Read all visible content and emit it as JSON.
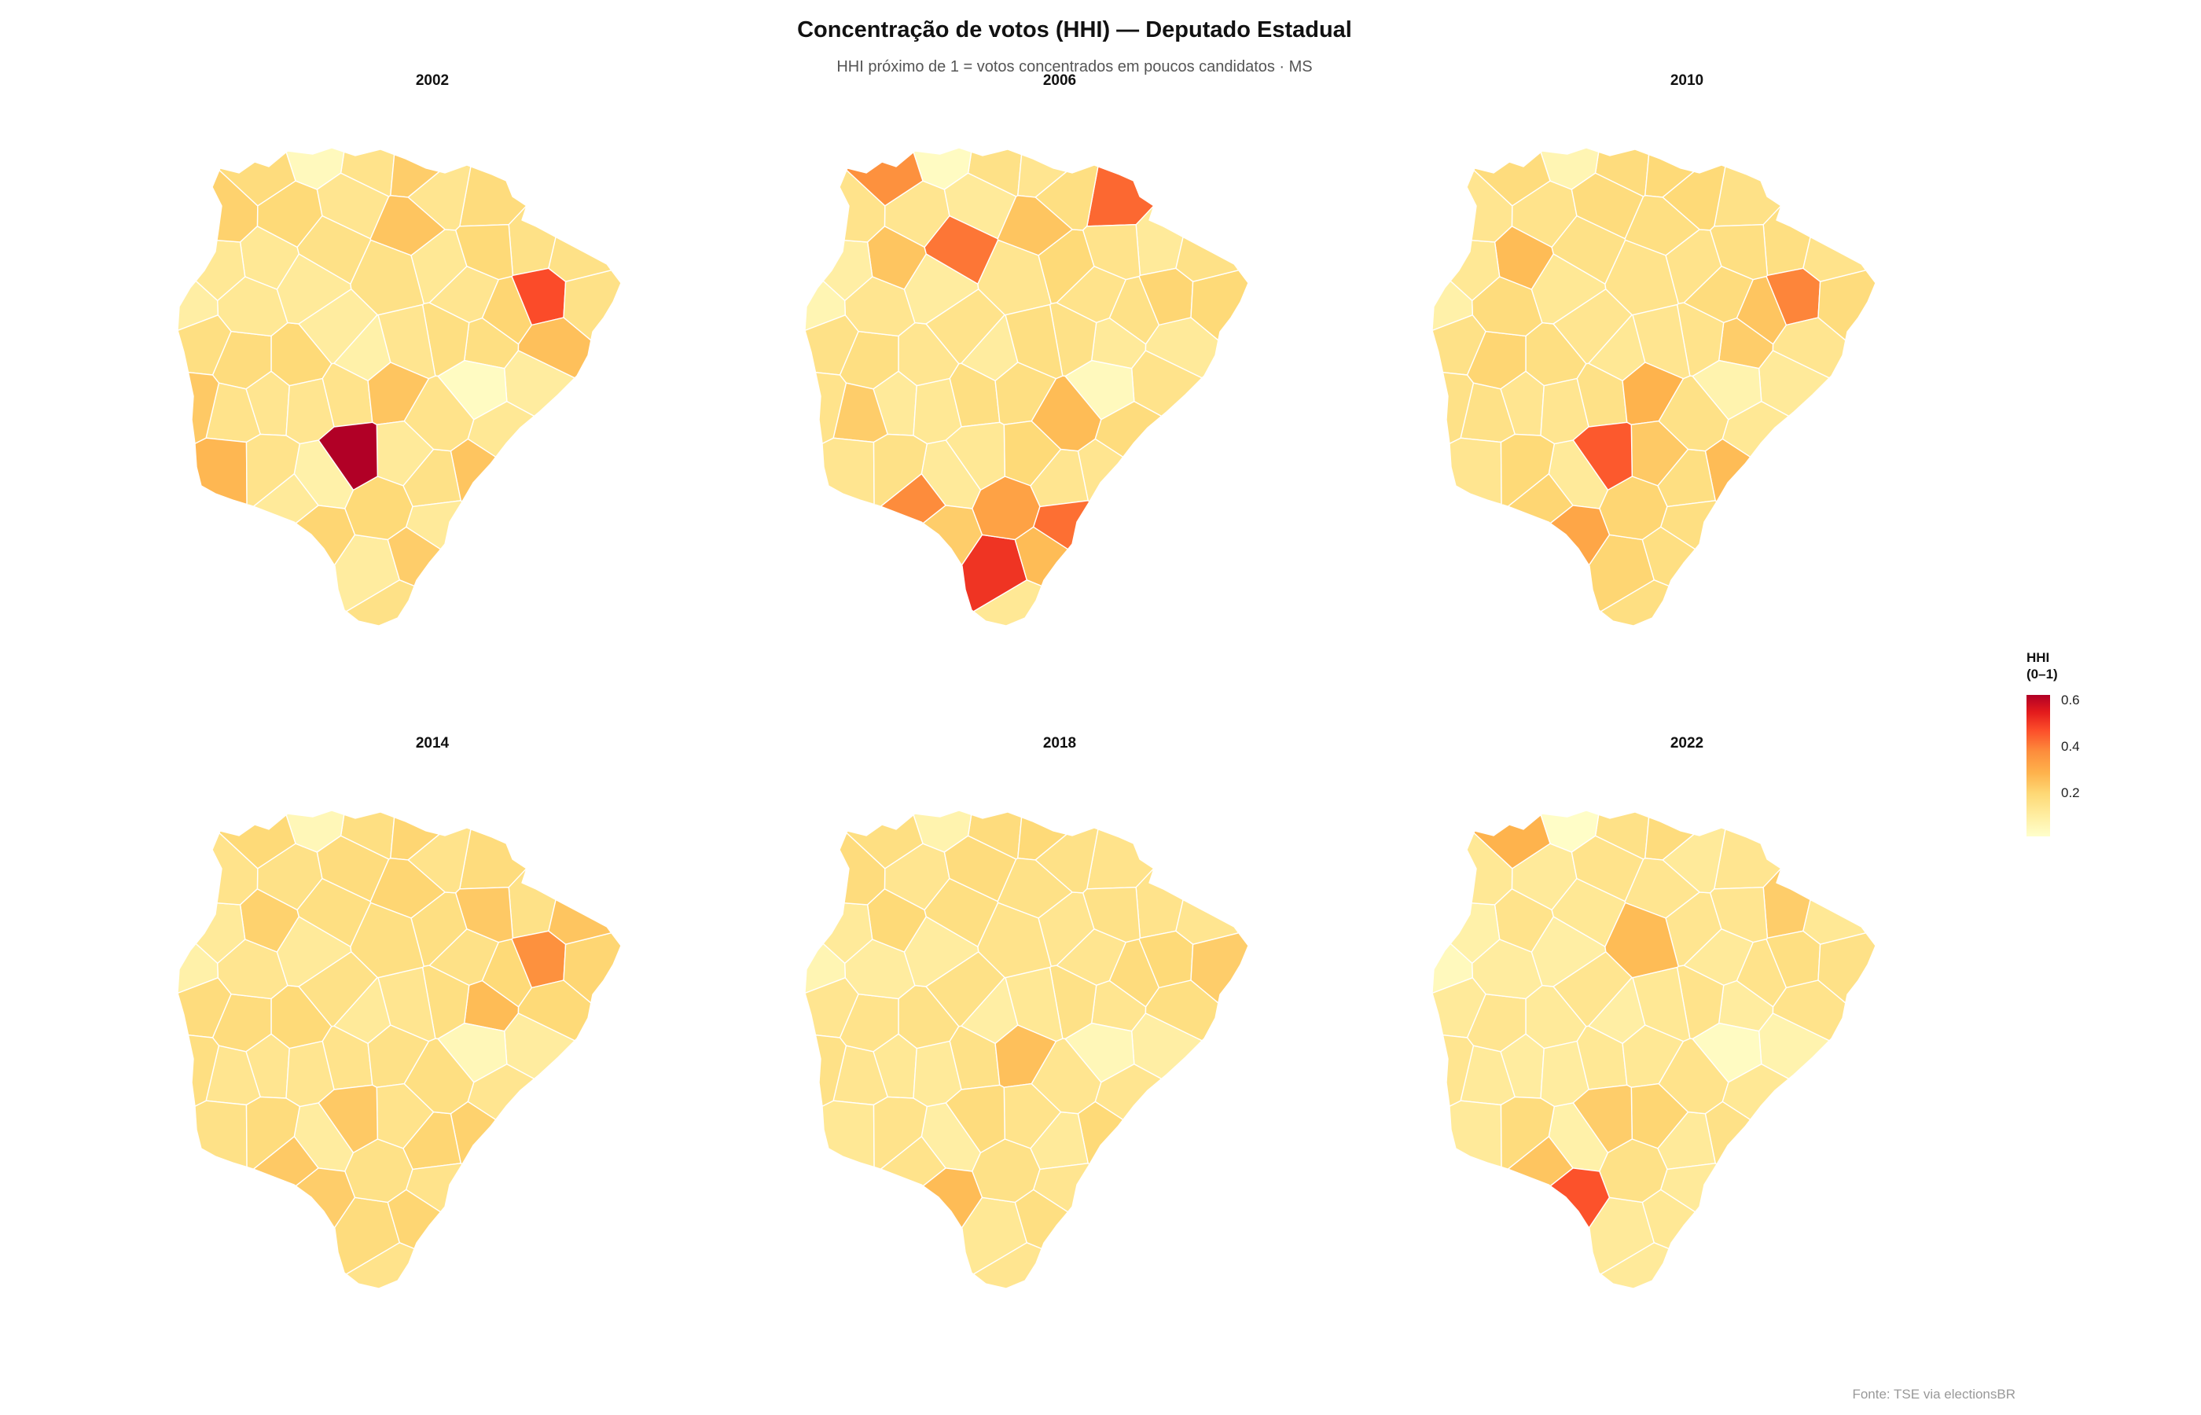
{
  "title": "Concentração de votos (HHI) — Deputado Estadual",
  "subtitle": "HHI próximo de 1 = votos concentrados em poucos candidatos · MS",
  "caption": "Fonte: TSE via electionsBR",
  "legend": {
    "title_line1": "HHI",
    "title_line2": "(0–1)",
    "ticks": [
      {
        "value": 0.6,
        "label": "0.6"
      },
      {
        "value": 0.4,
        "label": "0.4"
      },
      {
        "value": 0.2,
        "label": "0.2"
      }
    ],
    "range": [
      0.0,
      0.61
    ]
  },
  "color_scale": [
    "#ffffcc",
    "#ffeda0",
    "#fed976",
    "#feb24c",
    "#fd8d3c",
    "#fc4e2a",
    "#e31a1c",
    "#b10026"
  ],
  "panels": [
    {
      "year": "2002",
      "values": [
        0.11,
        0.17,
        0.16,
        0.14,
        0.12,
        0.22,
        0.18,
        0.14,
        0.11,
        0.07,
        0.11,
        0.13,
        0.09,
        0.44,
        0.2,
        0.16,
        0.12,
        0.15,
        0.13,
        0.17,
        0.1,
        0.09,
        0.14,
        0.12,
        0.14,
        0.11,
        0.08,
        0.03,
        0.02,
        0.07,
        0.09,
        0.13,
        0.15,
        0.19,
        0.14,
        0.1,
        0.12,
        0.15,
        0.17,
        0.22,
        0.16,
        0.1,
        0.13,
        0.2,
        0.14,
        0.17,
        0.12,
        0.18,
        0.25,
        0.22,
        0.11,
        0.14,
        0.1,
        0.23,
        0.13,
        0.61,
        0.12,
        0.21
      ]
    },
    {
      "year": "2006",
      "values": [
        0.22,
        0.12,
        0.15,
        0.38,
        0.13,
        0.12,
        0.14,
        0.1,
        0.17,
        0.09,
        0.12,
        0.15,
        0.48,
        0.18,
        0.24,
        0.4,
        0.15,
        0.1,
        0.14,
        0.12,
        0.09,
        0.13,
        0.11,
        0.1,
        0.12,
        0.08,
        0.05,
        0.02,
        0.03,
        0.1,
        0.13,
        0.2,
        0.14,
        0.13,
        0.17,
        0.35,
        0.11,
        0.14,
        0.13,
        0.15,
        0.34,
        0.17,
        0.24,
        0.12,
        0.14,
        0.3,
        0.1,
        0.2,
        0.12,
        0.22,
        0.16,
        0.12,
        0.39,
        0.1,
        0.14,
        0.11,
        0.15,
        0.13
      ]
    },
    {
      "year": "2010",
      "values": [
        0.24,
        0.15,
        0.18,
        0.14,
        0.16,
        0.24,
        0.22,
        0.15,
        0.13,
        0.11,
        0.16,
        0.14,
        0.18,
        0.36,
        0.15,
        0.14,
        0.17,
        0.2,
        0.16,
        0.13,
        0.11,
        0.1,
        0.15,
        0.12,
        0.15,
        0.11,
        0.07,
        0.05,
        0.06,
        0.1,
        0.12,
        0.14,
        0.13,
        0.12,
        0.16,
        0.18,
        0.12,
        0.14,
        0.15,
        0.26,
        0.16,
        0.21,
        0.14,
        0.17,
        0.13,
        0.18,
        0.16,
        0.29,
        0.12,
        0.15,
        0.11,
        0.13,
        0.15,
        0.12,
        0.17,
        0.42,
        0.12,
        0.14
      ]
    },
    {
      "year": "2014",
      "values": [
        0.19,
        0.17,
        0.16,
        0.15,
        0.14,
        0.19,
        0.17,
        0.14,
        0.15,
        0.1,
        0.12,
        0.13,
        0.16,
        0.34,
        0.18,
        0.16,
        0.13,
        0.24,
        0.15,
        0.14,
        0.1,
        0.09,
        0.13,
        0.12,
        0.18,
        0.1,
        0.07,
        0.04,
        0.04,
        0.09,
        0.14,
        0.12,
        0.15,
        0.13,
        0.18,
        0.21,
        0.12,
        0.16,
        0.21,
        0.14,
        0.17,
        0.13,
        0.15,
        0.18,
        0.22,
        0.14,
        0.16,
        0.2,
        0.14,
        0.18,
        0.12,
        0.15,
        0.13,
        0.17,
        0.16,
        0.21,
        0.12,
        0.15
      ]
    },
    {
      "year": "2018",
      "values": [
        0.17,
        0.14,
        0.13,
        0.15,
        0.12,
        0.17,
        0.16,
        0.13,
        0.12,
        0.08,
        0.09,
        0.14,
        0.11,
        0.17,
        0.15,
        0.13,
        0.14,
        0.12,
        0.16,
        0.12,
        0.09,
        0.08,
        0.12,
        0.11,
        0.1,
        0.1,
        0.05,
        0.06,
        0.04,
        0.08,
        0.14,
        0.12,
        0.14,
        0.16,
        0.2,
        0.13,
        0.1,
        0.12,
        0.14,
        0.23,
        0.15,
        0.13,
        0.12,
        0.17,
        0.12,
        0.14,
        0.16,
        0.24,
        0.11,
        0.14,
        0.12,
        0.13,
        0.12,
        0.15,
        0.13,
        0.16,
        0.11,
        0.14
      ]
    },
    {
      "year": "2022",
      "values": [
        0.13,
        0.1,
        0.12,
        0.11,
        0.1,
        0.14,
        0.13,
        0.2,
        0.12,
        0.08,
        0.09,
        0.11,
        0.1,
        0.15,
        0.11,
        0.12,
        0.1,
        0.09,
        0.14,
        0.1,
        0.08,
        0.06,
        0.1,
        0.09,
        0.1,
        0.07,
        0.03,
        0.01,
        0.02,
        0.07,
        0.12,
        0.1,
        0.13,
        0.11,
        0.14,
        0.22,
        0.09,
        0.1,
        0.12,
        0.11,
        0.26,
        0.18,
        0.13,
        0.16,
        0.11,
        0.14,
        0.13,
        0.43,
        0.1,
        0.12,
        0.11,
        0.24,
        0.1,
        0.13,
        0.16,
        0.2,
        0.11,
        0.12
      ]
    }
  ]
}
